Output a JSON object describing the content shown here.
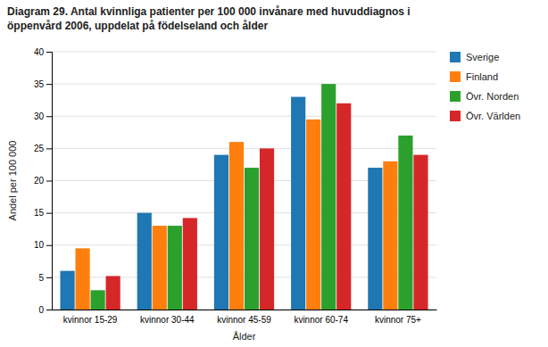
{
  "chart_data": {
    "type": "bar",
    "title": "Diagram 29.    Antal kvinnliga patienter per 100 000 invånare med huvuddiagnos i",
    "subtitle": "öppenvård 2006, uppdelat på födelseland och ålder",
    "categories": [
      "kvinnor 15-29",
      "kvinnor 30-44",
      "kvinnor 45-59",
      "kvinnor 60-74",
      "kvinnor 75+"
    ],
    "series": [
      {
        "name": "Sverige",
        "values": [
          6,
          15,
          24,
          33,
          22
        ]
      },
      {
        "name": "Finland",
        "values": [
          9.5,
          13,
          26,
          29.5,
          23
        ]
      },
      {
        "name": "Övr. Norden",
        "values": [
          3,
          13,
          22,
          35,
          27
        ]
      },
      {
        "name": "Övr. Världen",
        "values": [
          5.2,
          14.2,
          25,
          32,
          24
        ]
      }
    ],
    "xlabel": "Ålder",
    "ylabel": "Andel per 100 000",
    "ylim": [
      0,
      40
    ],
    "yticks": [
      0,
      5,
      10,
      15,
      20,
      25,
      30,
      35,
      40
    ],
    "grid": true,
    "legend": "right"
  }
}
